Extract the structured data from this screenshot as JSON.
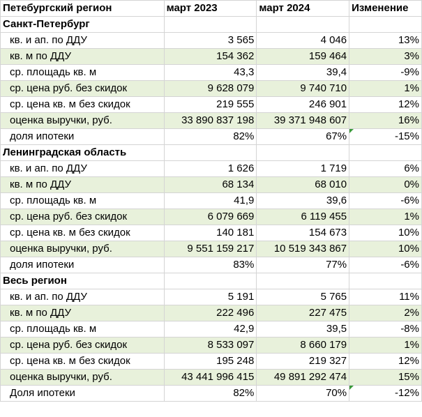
{
  "header": {
    "title": "Петебургский регион",
    "col_2023": "март 2023",
    "col_2024": "март 2024",
    "col_change": "Изменение"
  },
  "sections": [
    {
      "name": "Санкт-Петербург",
      "rows": [
        {
          "label": "кв. и ап. по ДДУ",
          "v2023": "3 565",
          "v2024": "4 046",
          "change": "13%"
        },
        {
          "label": "кв. м по ДДУ",
          "v2023": "154 362",
          "v2024": "159 464",
          "change": "3%"
        },
        {
          "label": "ср. площадь кв. м",
          "v2023": "43,3",
          "v2024": "39,4",
          "change": "-9%"
        },
        {
          "label": "ср. цена руб. без скидок",
          "v2023": "9 628 079",
          "v2024": "9 740 710",
          "change": "1%"
        },
        {
          "label": "ср. цена кв. м без скидок",
          "v2023": "219 555",
          "v2024": "246 901",
          "change": "12%"
        },
        {
          "label": "оценка выручки, руб.",
          "v2023": "33 890 837 198",
          "v2024": "39 371 948 607",
          "change": "16%"
        },
        {
          "label": "доля ипотеки",
          "v2023": "82%",
          "v2024": "67%",
          "change": "-15%"
        }
      ]
    },
    {
      "name": "Ленинградская область",
      "rows": [
        {
          "label": "кв. и ап. по ДДУ",
          "v2023": "1 626",
          "v2024": "1 719",
          "change": "6%"
        },
        {
          "label": "кв. м по ДДУ",
          "v2023": "68 134",
          "v2024": "68 010",
          "change": "0%"
        },
        {
          "label": "ср. площадь кв. м",
          "v2023": "41,9",
          "v2024": "39,6",
          "change": "-6%"
        },
        {
          "label": "ср. цена руб. без скидок",
          "v2023": "6 079 669",
          "v2024": "6 119 455",
          "change": "1%"
        },
        {
          "label": "ср. цена кв. м без скидок",
          "v2023": "140 181",
          "v2024": "154 673",
          "change": "10%"
        },
        {
          "label": "оценка выручки, руб.",
          "v2023": "9 551 159 217",
          "v2024": "10 519 343 867",
          "change": "10%"
        },
        {
          "label": "доля ипотеки",
          "v2023": "83%",
          "v2024": "77%",
          "change": "-6%"
        }
      ]
    },
    {
      "name": "Весь регион",
      "rows": [
        {
          "label": "кв. и ап. по ДДУ",
          "v2023": "5 191",
          "v2024": "5 765",
          "change": "11%"
        },
        {
          "label": "кв. м по ДДУ",
          "v2023": "222 496",
          "v2024": "227 475",
          "change": "2%"
        },
        {
          "label": "ср. площадь кв. м",
          "v2023": "42,9",
          "v2024": "39,5",
          "change": "-8%"
        },
        {
          "label": "ср. цена руб. без скидок",
          "v2023": "8 533 097",
          "v2024": "8 660 179",
          "change": "1%"
        },
        {
          "label": "ср. цена кв. м без скидок",
          "v2023": "195 248",
          "v2024": "219 327",
          "change": "12%"
        },
        {
          "label": "оценка выручки, руб.",
          "v2023": "43 441 996 415",
          "v2024": "49 891 292 474",
          "change": "15%"
        },
        {
          "label": "Доля ипотеки",
          "v2023": "82%",
          "v2024": "70%",
          "change": "-12%"
        }
      ]
    }
  ],
  "colors": {
    "row_shade": "#e8f1db",
    "grid": "#d4d4d4",
    "error_marker": "#3a9a3a"
  }
}
